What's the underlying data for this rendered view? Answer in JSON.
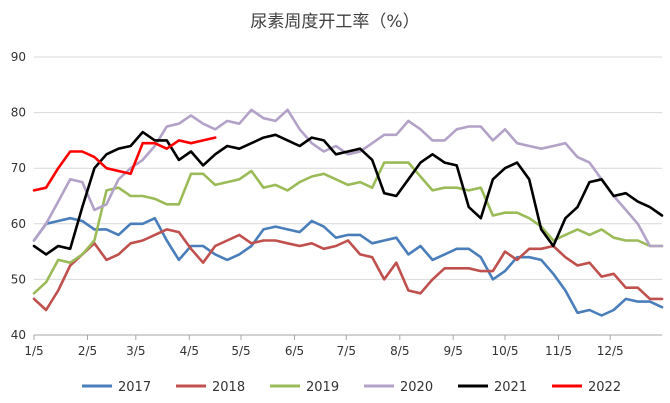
{
  "chart_data": {
    "type": "line",
    "title": "尿素周度开工率（%）",
    "xlabel": "",
    "ylabel": "",
    "ylim": [
      40,
      90
    ],
    "yticks": [
      40,
      50,
      60,
      70,
      80,
      90
    ],
    "xlim": [
      1,
      53
    ],
    "xticks": [
      {
        "label": "1/5",
        "x": 1
      },
      {
        "label": "2/5",
        "x": 5.43
      },
      {
        "label": "3/5",
        "x": 9.43
      },
      {
        "label": "4/5",
        "x": 13.86
      },
      {
        "label": "5/5",
        "x": 18.14
      },
      {
        "label": "6/5",
        "x": 22.57
      },
      {
        "label": "7/5",
        "x": 26.86
      },
      {
        "label": "8/5",
        "x": 31.29
      },
      {
        "label": "9/5",
        "x": 35.71
      },
      {
        "label": "10/5",
        "x": 40
      },
      {
        "label": "11/5",
        "x": 44.43
      },
      {
        "label": "12/5",
        "x": 48.71
      }
    ],
    "grid": "y-major",
    "legend_position": "bottom",
    "series": [
      {
        "name": "2017",
        "color": "#4a7ebb",
        "values": [
          57,
          60,
          60.5,
          61,
          60.5,
          59,
          59,
          58,
          60,
          60,
          61,
          57,
          53.5,
          56,
          56,
          54.5,
          53.5,
          54.5,
          56,
          59,
          59.5,
          59,
          58.5,
          60.5,
          59.5,
          57.5,
          58,
          58,
          56.5,
          57,
          57.5,
          54.5,
          56,
          53.5,
          54.5,
          55.5,
          55.5,
          54,
          50,
          51.5,
          54,
          54,
          53.5,
          51,
          48,
          44,
          44.5,
          43.5,
          44.5,
          46.5,
          46,
          46,
          45
        ]
      },
      {
        "name": "2018",
        "color": "#c0504d",
        "values": [
          46.5,
          44.5,
          48,
          52.5,
          54.5,
          56.5,
          53.5,
          54.5,
          56.5,
          57,
          58,
          59,
          58.5,
          55.5,
          53,
          56,
          57,
          58,
          56.5,
          57,
          57,
          56.5,
          56,
          56.5,
          55.5,
          56,
          57,
          54.5,
          54,
          50,
          53,
          48,
          47.5,
          50,
          52,
          52,
          52,
          51.5,
          51.5,
          55,
          53.5,
          55.5,
          55.5,
          56,
          54,
          52.5,
          53,
          50.5,
          51,
          48.5,
          48.5,
          46.5,
          46.5
        ]
      },
      {
        "name": "2019",
        "color": "#9bbb59",
        "values": [
          47.5,
          49.5,
          53.5,
          53,
          54.5,
          57,
          66,
          66.5,
          65,
          65,
          64.5,
          63.5,
          63.5,
          69,
          69,
          67,
          67.5,
          68,
          69.5,
          66.5,
          67,
          66,
          67.5,
          68.5,
          69,
          68,
          67,
          67.5,
          66.5,
          71,
          71,
          71,
          68.5,
          66,
          66.5,
          66.5,
          66,
          66.5,
          61.5,
          62,
          62,
          61,
          59.5,
          57,
          58,
          59,
          58,
          59,
          57.5,
          57,
          57,
          56,
          56
        ]
      },
      {
        "name": "2020",
        "color": "#b3a2c7",
        "values": [
          57,
          60,
          64,
          68,
          67.5,
          62.5,
          63.5,
          68,
          70,
          71.5,
          74,
          77.5,
          78,
          79.5,
          78,
          77,
          78.5,
          78,
          80.5,
          79,
          78.5,
          80.5,
          77,
          74.5,
          73,
          74,
          72.5,
          73,
          74.5,
          76,
          76,
          78.5,
          77,
          75,
          75,
          77,
          77.5,
          77.5,
          75,
          77,
          74.5,
          74,
          73.5,
          74,
          74.5,
          72,
          71,
          68,
          65,
          62.5,
          60,
          56,
          56
        ]
      },
      {
        "name": "2021",
        "color": "#000000",
        "values": [
          56,
          54.5,
          56,
          55.5,
          63,
          70,
          72.5,
          73.5,
          74,
          76.5,
          75,
          75,
          71.5,
          73,
          70.5,
          72.5,
          74,
          73.5,
          74.5,
          75.5,
          76,
          75,
          74,
          75.5,
          75,
          72.5,
          73,
          73.5,
          71.5,
          65.5,
          65,
          68,
          71,
          72.5,
          71,
          70.5,
          63,
          61,
          68,
          70,
          71,
          68,
          59,
          56,
          61,
          63,
          67.5,
          68,
          65,
          65.5,
          64,
          63,
          61.5
        ]
      },
      {
        "name": "2022",
        "color": "#ff0000",
        "values": [
          66,
          66.5,
          70,
          73,
          73,
          72,
          70,
          69.5,
          69,
          74.5,
          74.5,
          73.5,
          75,
          74.5,
          75,
          75.5,
          null,
          null,
          null,
          null,
          null,
          null,
          null,
          null,
          null,
          null,
          null,
          null,
          null,
          null,
          null,
          null,
          null,
          null,
          null,
          null,
          null,
          null,
          null,
          null,
          null,
          null,
          null,
          null,
          null,
          null,
          null,
          null,
          null,
          null,
          null,
          null,
          null
        ]
      }
    ]
  }
}
